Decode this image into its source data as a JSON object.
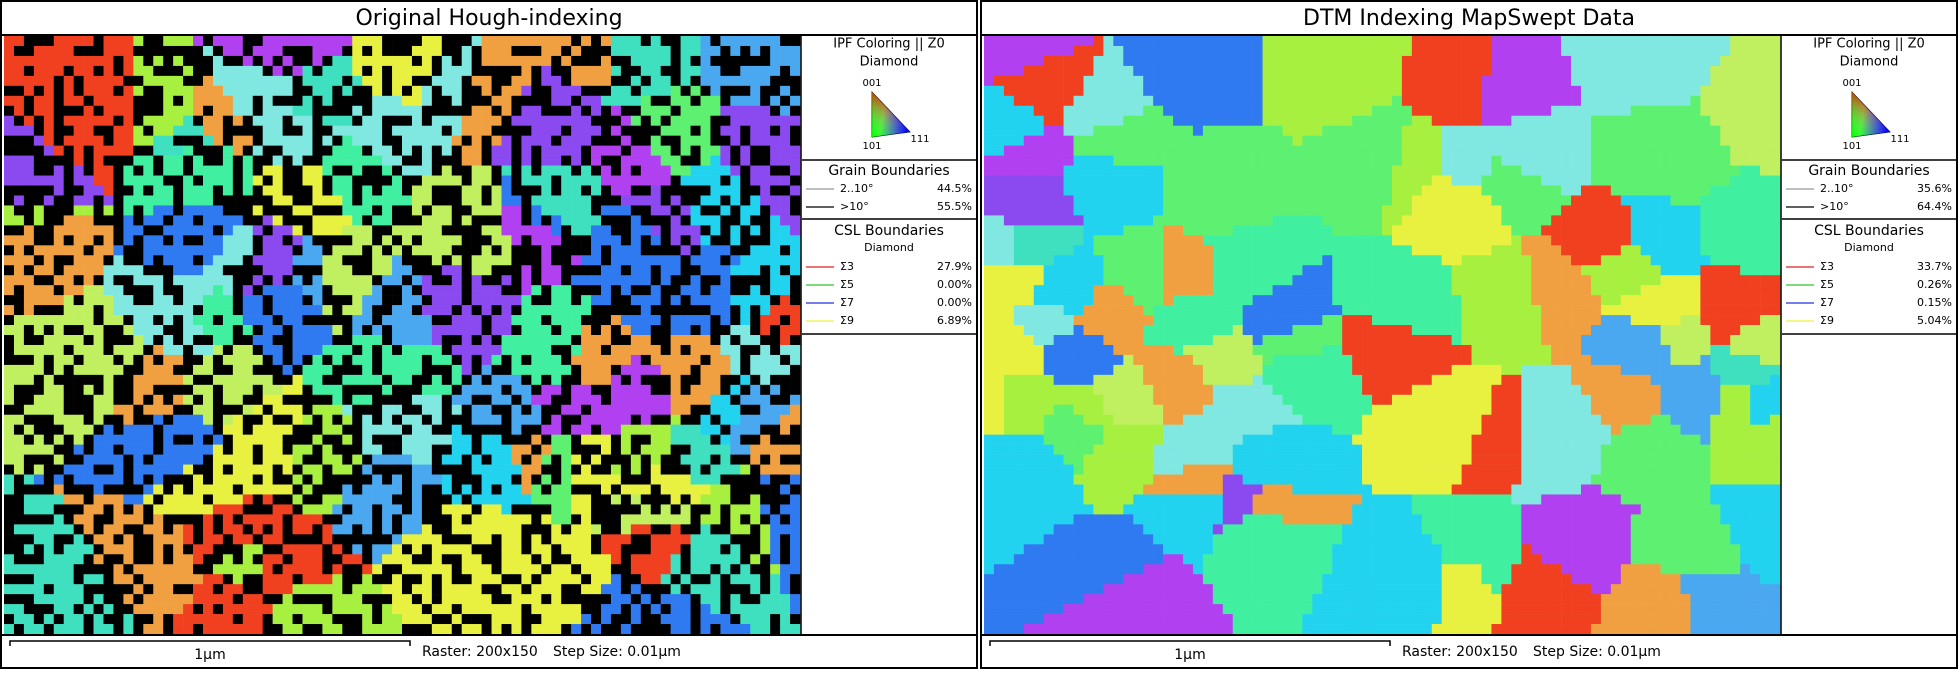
{
  "panels": [
    {
      "title": "Original Hough-indexing",
      "legend": {
        "ipf_title": "IPF Coloring || Z0",
        "phase": "Diamond",
        "corners": [
          "001",
          "101",
          "111"
        ],
        "grain_boundaries": {
          "title": "Grain Boundaries",
          "rows": [
            {
              "label": "2..10°",
              "value": "44.5%"
            },
            {
              "label": ">10°",
              "value": "55.5%"
            }
          ]
        },
        "csl_boundaries": {
          "title": "CSL Boundaries",
          "phase": "Diamond",
          "rows": [
            {
              "label": "Σ3",
              "value": "27.9%"
            },
            {
              "label": "Σ5",
              "value": "0.00%"
            },
            {
              "label": "Σ7",
              "value": "0.00%"
            },
            {
              "label": "Σ9",
              "value": "6.89%"
            }
          ]
        }
      },
      "scale_bar": "1μm",
      "raster": "Raster: 200x150",
      "step_size": "Step Size: 0.01μm"
    },
    {
      "title": "DTM Indexing MapSwept Data",
      "legend": {
        "ipf_title": "IPF Coloring || Z0",
        "phase": "Diamond",
        "corners": [
          "001",
          "101",
          "111"
        ],
        "grain_boundaries": {
          "title": "Grain Boundaries",
          "rows": [
            {
              "label": "2..10°",
              "value": "35.6%"
            },
            {
              "label": ">10°",
              "value": "64.4%"
            }
          ]
        },
        "csl_boundaries": {
          "title": "CSL Boundaries",
          "phase": "Diamond",
          "rows": [
            {
              "label": "Σ3",
              "value": "33.7%"
            },
            {
              "label": "Σ5",
              "value": "0.26%"
            },
            {
              "label": "Σ7",
              "value": "0.15%"
            },
            {
              "label": "Σ9",
              "value": "5.04%"
            }
          ]
        }
      },
      "scale_bar": "1μm",
      "raster": "Raster: 200x150",
      "step_size": "Step Size: 0.01μm"
    }
  ]
}
